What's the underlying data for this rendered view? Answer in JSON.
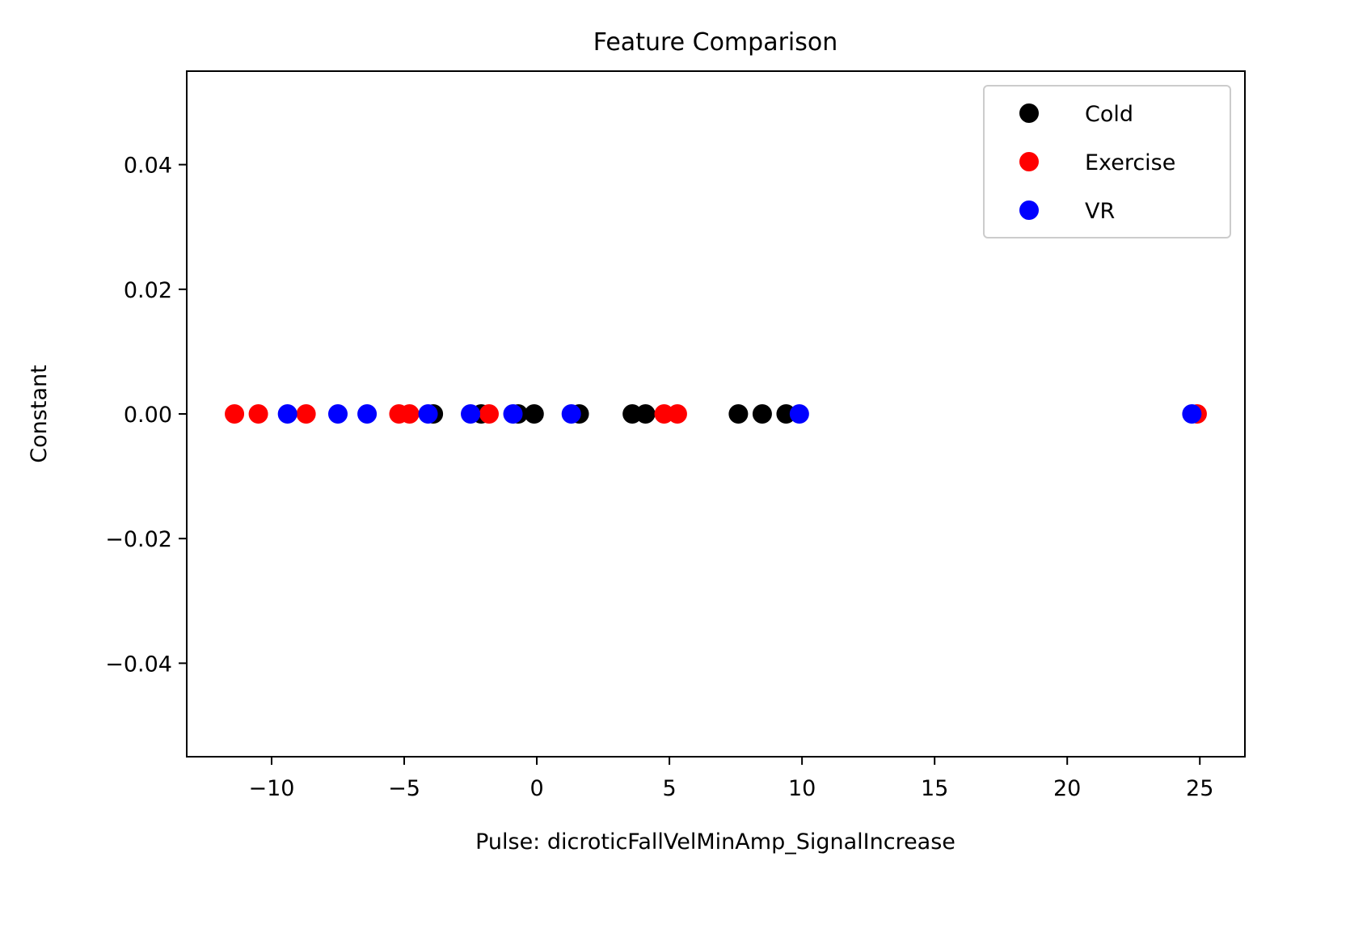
{
  "chart_data": {
    "type": "scatter",
    "title": "Feature Comparison",
    "xlabel": "Pulse: dicroticFallVelMinAmp_SignalIncrease",
    "ylabel": "Constant",
    "xlim": [
      -13.2,
      26.7
    ],
    "ylim": [
      -0.055,
      0.055
    ],
    "xticks": [
      -10,
      -5,
      0,
      5,
      10,
      15,
      20,
      25
    ],
    "xtick_labels": [
      "−10",
      "−5",
      "0",
      "5",
      "10",
      "15",
      "20",
      "25"
    ],
    "yticks": [
      0.04,
      0.02,
      0.0,
      -0.02,
      -0.04
    ],
    "ytick_labels": [
      "0.04",
      "0.02",
      "0.00",
      "−0.02",
      "−0.04"
    ],
    "grid": false,
    "legend_position": "top-right",
    "series": [
      {
        "name": "Cold",
        "color": "#000000",
        "x": [
          -3.9,
          -2.1,
          -0.7,
          -0.1,
          1.6,
          3.6,
          4.1,
          7.6,
          8.5,
          9.4
        ],
        "y": [
          0,
          0,
          0,
          0,
          0,
          0,
          0,
          0,
          0,
          0
        ]
      },
      {
        "name": "Exercise",
        "color": "#ff0000",
        "x": [
          -11.4,
          -10.5,
          -8.7,
          -5.2,
          -4.8,
          -1.8,
          4.8,
          5.3,
          24.9
        ],
        "y": [
          0,
          0,
          0,
          0,
          0,
          0,
          0,
          0,
          0
        ]
      },
      {
        "name": "VR",
        "color": "#0000ff",
        "x": [
          -9.4,
          -7.5,
          -6.4,
          -4.1,
          -2.5,
          -0.9,
          1.3,
          9.9,
          24.7
        ],
        "y": [
          0,
          0,
          0,
          0,
          0,
          0,
          0,
          0,
          0
        ]
      }
    ]
  }
}
